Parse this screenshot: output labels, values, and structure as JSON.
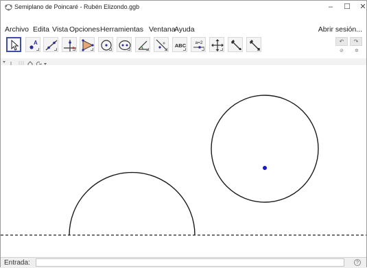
{
  "window": {
    "title": "Semiplano de Poincaré - Rubén Elizondo.ggb",
    "minimize_glyph": "–",
    "maximize_glyph": "☐",
    "close_glyph": "✕"
  },
  "menu": {
    "items": [
      "Archivo",
      "Edita",
      "Vista",
      "Opciones",
      "Herramientas",
      "Ventana",
      "Ayuda"
    ],
    "signin_label": "Abrir sesión..."
  },
  "toolbar": {
    "tools": [
      {
        "icon": "move-arrow-icon"
      },
      {
        "icon": "point-icon",
        "label": "A"
      },
      {
        "icon": "line-icon"
      },
      {
        "icon": "perpendicular-line-icon"
      },
      {
        "icon": "polygon-icon"
      },
      {
        "icon": "circle-center-point-icon"
      },
      {
        "icon": "ellipse-icon"
      },
      {
        "icon": "angle-icon"
      },
      {
        "icon": "reflect-icon"
      },
      {
        "icon": "text-icon",
        "label": "ABC"
      },
      {
        "icon": "slider-icon",
        "label": "a=2"
      },
      {
        "icon": "move-graphics-view-icon"
      },
      {
        "icon": "wrench-tool-icon"
      },
      {
        "icon": "wrench-tool-icon"
      }
    ],
    "undo_glyph": "↶",
    "redo_glyph": "↷"
  },
  "input_bar": {
    "label": "Entrada:",
    "value": "",
    "help_glyph": "?"
  },
  "colors": {
    "accent": "#3d4ea8",
    "point": "#1a1acc",
    "curve": "#1a1a1a"
  }
}
